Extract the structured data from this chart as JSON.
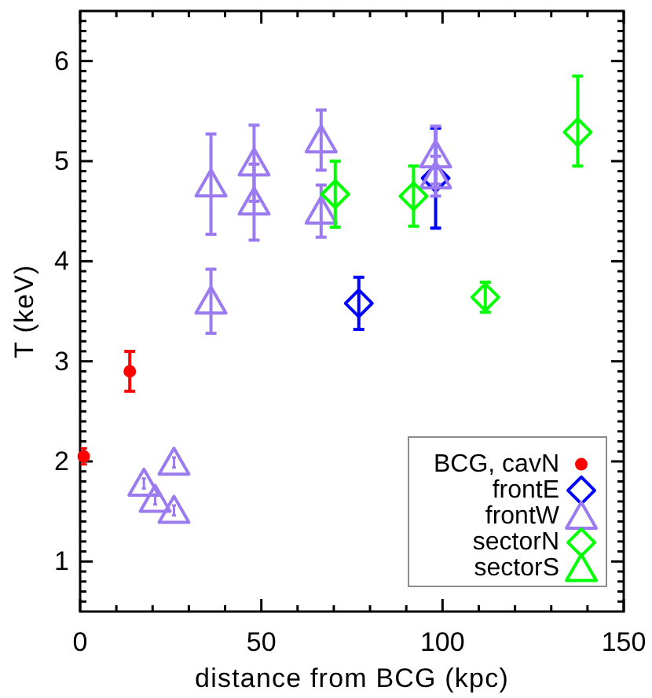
{
  "chart_data": {
    "type": "scatter",
    "xlabel": "distance from BCG (kpc)",
    "ylabel": "T (keV)",
    "xlim": [
      0,
      150
    ],
    "ylim": [
      0.5,
      6.5
    ],
    "xticks": [
      0,
      {
        "value": 10,
        "label": null
      },
      {
        "value": 20,
        "label": null
      },
      {
        "value": 30,
        "label": null
      },
      {
        "value": 40,
        "label": null
      },
      50,
      {
        "value": 60,
        "label": null
      },
      {
        "value": 70,
        "label": null
      },
      {
        "value": 80,
        "label": null
      },
      {
        "value": 90,
        "label": null
      },
      100,
      {
        "value": 110,
        "label": null
      },
      {
        "value": 120,
        "label": null
      },
      {
        "value": 130,
        "label": null
      },
      {
        "value": 140,
        "label": null
      },
      150
    ],
    "yticks": [
      {
        "value": 0.6,
        "label": null
      },
      {
        "value": 0.7,
        "label": null
      },
      {
        "value": 0.8,
        "label": null
      },
      {
        "value": 0.9,
        "label": null
      },
      1,
      {
        "value": 1.1,
        "label": null
      },
      {
        "value": 1.2,
        "label": null
      },
      {
        "value": 1.3,
        "label": null
      },
      {
        "value": 1.4,
        "label": null
      },
      {
        "value": 1.5,
        "label": null
      },
      {
        "value": 1.6,
        "label": null
      },
      {
        "value": 1.7,
        "label": null
      },
      {
        "value": 1.8,
        "label": null
      },
      {
        "value": 1.9,
        "label": null
      },
      2,
      {
        "value": 2.1,
        "label": null
      },
      {
        "value": 2.2,
        "label": null
      },
      {
        "value": 2.3,
        "label": null
      },
      {
        "value": 2.4,
        "label": null
      },
      {
        "value": 2.5,
        "label": null
      },
      {
        "value": 2.6,
        "label": null
      },
      {
        "value": 2.7,
        "label": null
      },
      {
        "value": 2.8,
        "label": null
      },
      {
        "value": 2.9,
        "label": null
      },
      3,
      {
        "value": 3.1,
        "label": null
      },
      {
        "value": 3.2,
        "label": null
      },
      {
        "value": 3.3,
        "label": null
      },
      {
        "value": 3.4,
        "label": null
      },
      {
        "value": 3.5,
        "label": null
      },
      {
        "value": 3.6,
        "label": null
      },
      {
        "value": 3.7,
        "label": null
      },
      {
        "value": 3.8,
        "label": null
      },
      {
        "value": 3.9,
        "label": null
      },
      4,
      {
        "value": 4.1,
        "label": null
      },
      {
        "value": 4.2,
        "label": null
      },
      {
        "value": 4.3,
        "label": null
      },
      {
        "value": 4.4,
        "label": null
      },
      {
        "value": 4.5,
        "label": null
      },
      {
        "value": 4.6,
        "label": null
      },
      {
        "value": 4.7,
        "label": null
      },
      {
        "value": 4.8,
        "label": null
      },
      {
        "value": 4.9,
        "label": null
      },
      5,
      {
        "value": 5.1,
        "label": null
      },
      {
        "value": 5.2,
        "label": null
      },
      {
        "value": 5.3,
        "label": null
      },
      {
        "value": 5.4,
        "label": null
      },
      {
        "value": 5.5,
        "label": null
      },
      {
        "value": 5.6,
        "label": null
      },
      {
        "value": 5.7,
        "label": null
      },
      {
        "value": 5.8,
        "label": null
      },
      {
        "value": 5.9,
        "label": null
      },
      6,
      {
        "value": 6.1,
        "label": null
      },
      {
        "value": 6.2,
        "label": null
      },
      {
        "value": 6.3,
        "label": null
      },
      {
        "value": 6.4,
        "label": null
      }
    ],
    "legend": "bottom right",
    "series": [
      {
        "name": "BCG, cavN",
        "color": "#ff0000",
        "marker": "circle",
        "x": [
          1,
          13.7
        ],
        "values": [
          2.05,
          2.9
        ],
        "errors": [
          0.08,
          0.2
        ]
      },
      {
        "name": "frontE",
        "color": "#0000ff",
        "marker": "diamond",
        "x": [
          76.9,
          98.1
        ],
        "values": [
          3.58,
          4.83
        ],
        "errors": [
          0.26,
          0.5
        ]
      },
      {
        "name": "frontW",
        "color": "#9b7bef",
        "marker": "triangle",
        "x": [
          17.6,
          20.7,
          25.9,
          25.9,
          36.1,
          36.1,
          48,
          48,
          66.5,
          66.5,
          98.1,
          98.1
        ],
        "values": [
          1.78,
          1.62,
          1.99,
          1.51,
          4.77,
          3.6,
          4.98,
          4.59,
          5.21,
          4.5,
          5.06,
          4.85
        ],
        "errors": [
          0.05,
          0.05,
          0.05,
          0.05,
          0.5,
          0.32,
          0.38,
          0.38,
          0.3,
          0.26,
          0.29,
          0.2
        ]
      },
      {
        "name": "sectorN",
        "color": "#00ff00",
        "marker": "diamond",
        "x": [
          70.4,
          92,
          111.8,
          137.3
        ],
        "values": [
          4.67,
          4.65,
          3.64,
          5.29
        ],
        "errors": [
          0.33,
          0.3,
          0.15,
          [
            4.95,
            5.85
          ]
        ]
      },
      {
        "name": "sectorS",
        "color": "#00ff00",
        "marker": "triangle"
      }
    ]
  }
}
